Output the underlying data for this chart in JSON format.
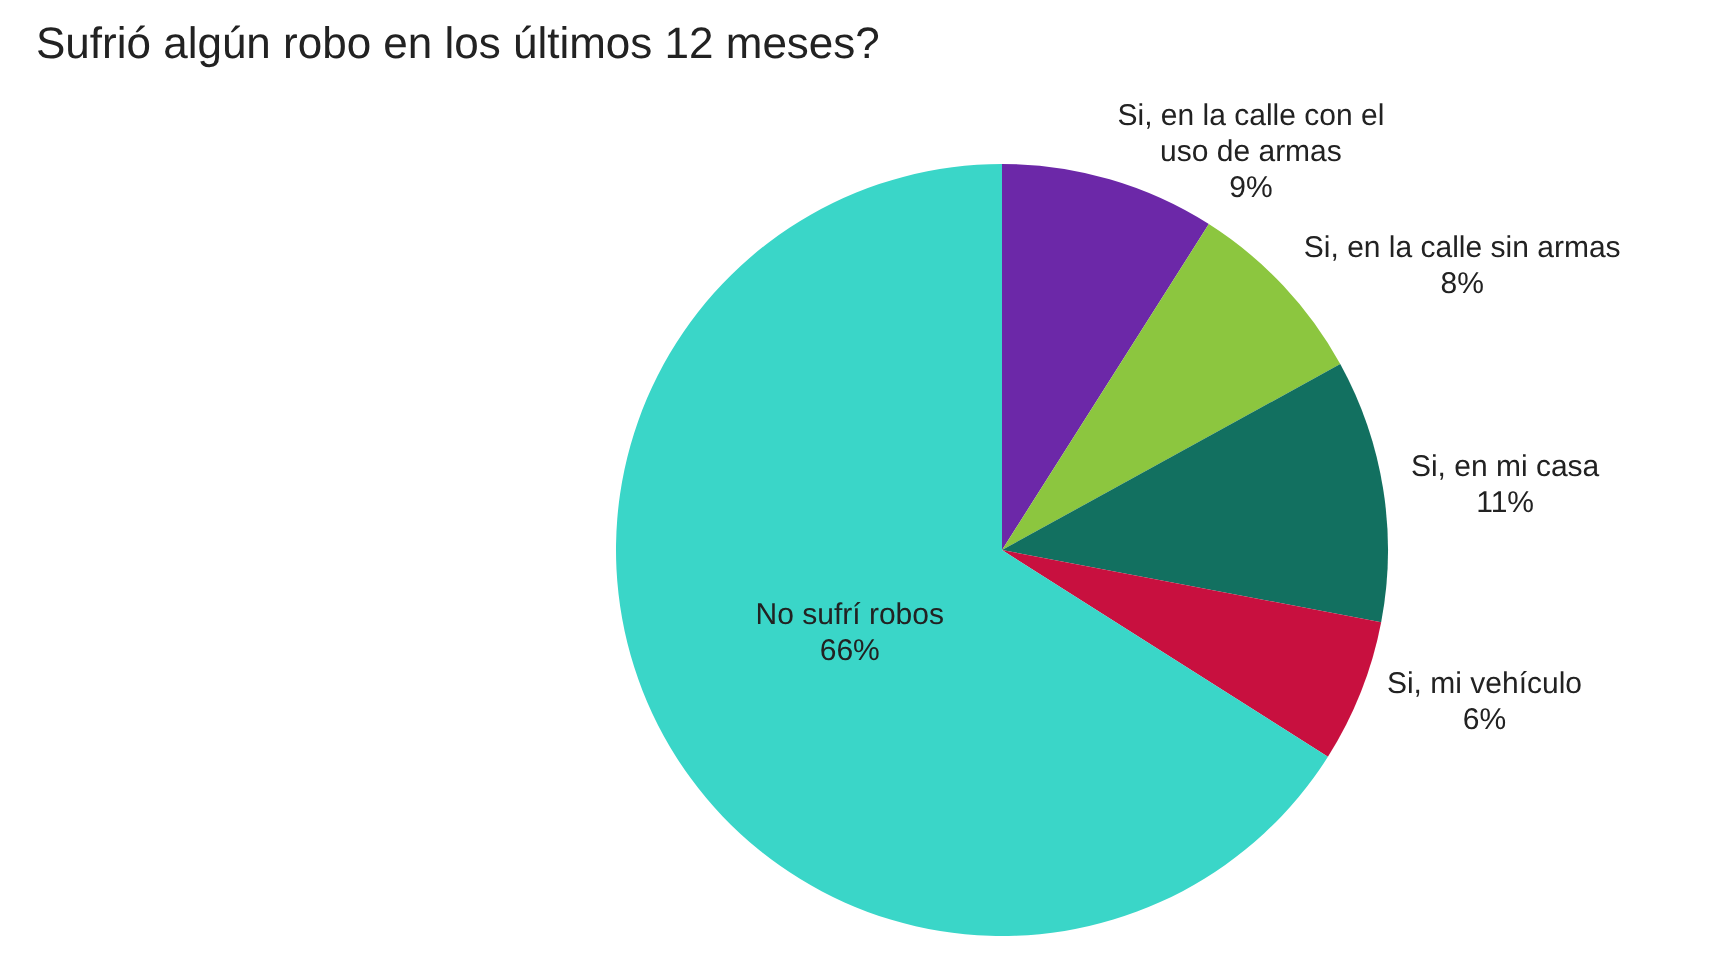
{
  "chart_data": {
    "type": "pie",
    "title": "Sufrió algún robo en los últimos 12 meses?",
    "categories": [
      "Si, en la calle con el uso de armas",
      "Si, en la calle sin armas",
      "Si, en mi casa",
      "Si, mi vehículo",
      "No sufrí robos"
    ],
    "values": [
      9,
      8,
      11,
      6,
      66
    ],
    "colors": [
      "#6c28a8",
      "#8cc63f",
      "#127060",
      "#c8103f",
      "#3ad6c8"
    ],
    "value_labels": [
      "9%",
      "8%",
      "11%",
      "6%",
      "66%"
    ]
  }
}
